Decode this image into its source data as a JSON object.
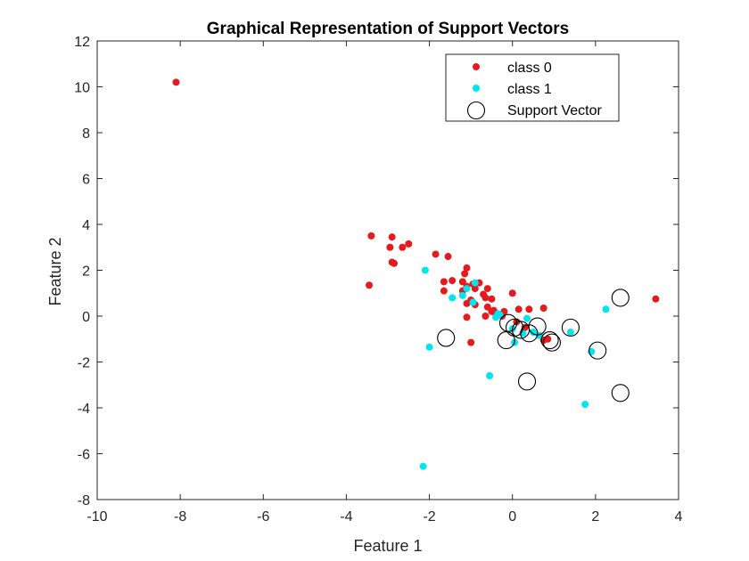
{
  "chart_data": {
    "type": "scatter",
    "title": "Graphical Representation of Support Vectors",
    "xlabel": "Feature 1",
    "ylabel": "Feature 2",
    "xlim": [
      -10,
      4
    ],
    "ylim": [
      -8,
      12
    ],
    "xticks": [
      -10,
      -8,
      -6,
      -4,
      -2,
      0,
      2,
      4
    ],
    "yticks": [
      -8,
      -6,
      -4,
      -2,
      0,
      2,
      4,
      6,
      8,
      10,
      12
    ],
    "grid": false,
    "legend_position": "top-right",
    "series": [
      {
        "name": "class 0",
        "marker": "filled-dot",
        "color": "#e41a1c",
        "points": [
          [
            -8.1,
            10.2
          ],
          [
            -3.4,
            3.5
          ],
          [
            -2.95,
            3.0
          ],
          [
            -2.9,
            3.45
          ],
          [
            -2.65,
            3.0
          ],
          [
            -2.5,
            3.15
          ],
          [
            -2.9,
            2.35
          ],
          [
            -2.85,
            2.3
          ],
          [
            -3.45,
            1.35
          ],
          [
            -1.85,
            2.7
          ],
          [
            -1.55,
            2.6
          ],
          [
            -1.1,
            2.1
          ],
          [
            -1.15,
            1.85
          ],
          [
            -1.65,
            1.5
          ],
          [
            -1.45,
            1.55
          ],
          [
            -1.2,
            1.5
          ],
          [
            -1.1,
            1.3
          ],
          [
            -0.95,
            1.4
          ],
          [
            -0.8,
            1.45
          ],
          [
            -1.65,
            1.1
          ],
          [
            -1.2,
            1.1
          ],
          [
            -0.9,
            1.2
          ],
          [
            -0.6,
            1.2
          ],
          [
            -0.7,
            0.95
          ],
          [
            -1.0,
            0.7
          ],
          [
            -1.1,
            0.55
          ],
          [
            -0.65,
            0.8
          ],
          [
            -0.5,
            0.75
          ],
          [
            -0.9,
            0.5
          ],
          [
            -0.6,
            0.4
          ],
          [
            -0.5,
            0.2
          ],
          [
            -0.4,
            0.1
          ],
          [
            -0.25,
            0.0
          ],
          [
            -0.65,
            0.0
          ],
          [
            -1.1,
            -0.05
          ],
          [
            -0.45,
            0.25
          ],
          [
            -0.2,
            0.2
          ],
          [
            0.0,
            1.0
          ],
          [
            0.15,
            0.3
          ],
          [
            0.4,
            0.3
          ],
          [
            0.75,
            0.35
          ],
          [
            0.1,
            -0.25
          ],
          [
            0.3,
            -0.5
          ],
          [
            0.75,
            -1.05
          ],
          [
            0.85,
            -1.0
          ],
          [
            -1.0,
            -1.15
          ],
          [
            3.45,
            0.75
          ]
        ]
      },
      {
        "name": "class 1",
        "marker": "filled-dot",
        "color": "#00e5ee",
        "points": [
          [
            -2.1,
            2.0
          ],
          [
            -0.9,
            1.45
          ],
          [
            -1.1,
            1.2
          ],
          [
            -1.2,
            0.9
          ],
          [
            -1.45,
            0.8
          ],
          [
            -0.95,
            0.6
          ],
          [
            -0.35,
            0.1
          ],
          [
            -0.4,
            -0.05
          ],
          [
            -0.3,
            0.05
          ],
          [
            0.35,
            -0.1
          ],
          [
            0.0,
            -0.55
          ],
          [
            0.25,
            -0.75
          ],
          [
            0.5,
            -0.7
          ],
          [
            0.65,
            -0.85
          ],
          [
            0.05,
            -1.15
          ],
          [
            -2.0,
            -1.35
          ],
          [
            -0.55,
            -2.6
          ],
          [
            1.4,
            -0.7
          ],
          [
            1.9,
            -1.55
          ],
          [
            2.25,
            0.3
          ],
          [
            1.75,
            -3.85
          ],
          [
            -2.15,
            -6.55
          ]
        ]
      },
      {
        "name": "Support Vector",
        "marker": "open-circle",
        "color": "#000000",
        "points": [
          [
            -1.6,
            -0.95
          ],
          [
            -0.1,
            -0.3
          ],
          [
            0.05,
            -0.5
          ],
          [
            0.2,
            -0.6
          ],
          [
            0.4,
            -0.75
          ],
          [
            0.6,
            -0.45
          ],
          [
            0.9,
            -1.05
          ],
          [
            0.95,
            -1.15
          ],
          [
            1.4,
            -0.5
          ],
          [
            2.05,
            -1.5
          ],
          [
            2.6,
            0.8
          ],
          [
            2.6,
            -3.35
          ],
          [
            0.35,
            -2.85
          ],
          [
            -0.15,
            -1.05
          ]
        ]
      }
    ]
  }
}
